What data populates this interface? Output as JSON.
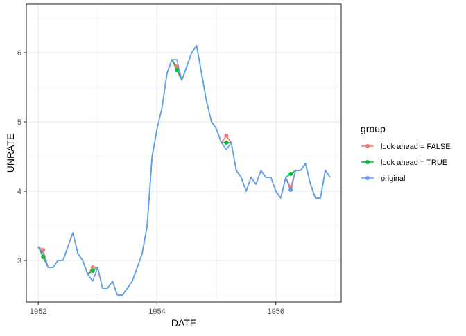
{
  "chart_data": {
    "type": "line",
    "xlabel": "DATE",
    "ylabel": "UNRATE",
    "xlim": [
      1951.8,
      1957.1
    ],
    "ylim": [
      2.4,
      6.7
    ],
    "x_ticks": [
      1952,
      1954,
      1956
    ],
    "x_tick_labels": [
      "1952",
      "1954",
      "1956"
    ],
    "y_ticks": [
      3,
      4,
      5,
      6
    ],
    "y_tick_labels": [
      "3",
      "4",
      "5",
      "6"
    ],
    "grid": true,
    "legend": {
      "title": "group",
      "position": "right",
      "entries": [
        {
          "label": "look ahead = FALSE",
          "color": "#F8766D"
        },
        {
          "label": "look ahead = TRUE",
          "color": "#00BA38"
        },
        {
          "label": "original",
          "color": "#619CFF"
        }
      ]
    },
    "series": [
      {
        "name": "original",
        "color": "#619CFF",
        "x": [
          1952.0,
          1952.083,
          1952.167,
          1952.25,
          1952.333,
          1952.417,
          1952.5,
          1952.583,
          1952.667,
          1952.75,
          1952.833,
          1952.917,
          1953.0,
          1953.083,
          1953.167,
          1953.25,
          1953.333,
          1953.417,
          1953.5,
          1953.583,
          1953.667,
          1953.75,
          1953.833,
          1953.917,
          1954.0,
          1954.083,
          1954.167,
          1954.25,
          1954.333,
          1954.417,
          1954.5,
          1954.583,
          1954.667,
          1954.75,
          1954.833,
          1954.917,
          1955.0,
          1955.083,
          1955.167,
          1955.25,
          1955.333,
          1955.417,
          1955.5,
          1955.583,
          1955.667,
          1955.75,
          1955.833,
          1955.917,
          1956.0,
          1956.083,
          1956.167,
          1956.25,
          1956.333,
          1956.417,
          1956.5,
          1956.583,
          1956.667,
          1956.75,
          1956.833,
          1956.917
        ],
        "values": [
          3.2,
          3.1,
          2.9,
          2.9,
          3.0,
          3.0,
          3.2,
          3.4,
          3.1,
          3.0,
          2.8,
          2.7,
          2.9,
          2.6,
          2.6,
          2.7,
          2.5,
          2.5,
          2.6,
          2.7,
          2.9,
          3.1,
          3.5,
          4.5,
          4.9,
          5.2,
          5.7,
          5.9,
          5.9,
          5.6,
          5.8,
          6.0,
          6.1,
          5.7,
          5.3,
          5.0,
          4.9,
          4.7,
          4.6,
          4.7,
          4.3,
          4.2,
          4.0,
          4.2,
          4.1,
          4.3,
          4.2,
          4.2,
          4.0,
          3.9,
          4.2,
          4.0,
          4.3,
          4.3,
          4.4,
          4.1,
          3.9,
          3.9,
          4.3,
          4.2
        ]
      },
      {
        "name": "look ahead = FALSE",
        "color": "#F8766D",
        "x": [
          1952.0,
          1952.083,
          1952.167,
          1952.25,
          1952.333,
          1952.417,
          1952.5,
          1952.583,
          1952.667,
          1952.75,
          1952.833,
          1952.917,
          1953.0,
          1953.083,
          1953.167,
          1953.25,
          1953.333,
          1953.417,
          1953.5,
          1953.583,
          1953.667,
          1953.75,
          1953.833,
          1953.917,
          1954.0,
          1954.083,
          1954.167,
          1954.25,
          1954.333,
          1954.417,
          1954.5,
          1954.583,
          1954.667,
          1954.75,
          1954.833,
          1954.917,
          1955.0,
          1955.083,
          1955.167,
          1955.25,
          1955.333,
          1955.417,
          1955.5,
          1955.583,
          1955.667,
          1955.75,
          1955.833,
          1955.917,
          1956.0,
          1956.083,
          1956.167,
          1956.25,
          1956.333,
          1956.417,
          1956.5,
          1956.583,
          1956.667,
          1956.75,
          1956.833,
          1956.917
        ],
        "values": [
          3.2,
          3.15,
          2.9,
          2.9,
          3.0,
          3.0,
          3.2,
          3.4,
          3.1,
          3.0,
          2.8,
          2.9,
          2.9,
          2.6,
          2.6,
          2.7,
          2.5,
          2.5,
          2.6,
          2.7,
          2.9,
          3.1,
          3.5,
          4.5,
          4.9,
          5.2,
          5.7,
          5.9,
          5.8,
          5.6,
          5.8,
          6.0,
          6.1,
          5.7,
          5.3,
          5.0,
          4.9,
          4.7,
          4.8,
          4.7,
          4.3,
          4.2,
          4.0,
          4.2,
          4.1,
          4.3,
          4.2,
          4.2,
          4.0,
          3.9,
          4.2,
          4.05,
          4.3,
          4.3,
          4.4,
          4.1,
          3.9,
          3.9,
          4.3,
          4.2
        ],
        "points": [
          {
            "x": 1952.083,
            "y": 3.15
          },
          {
            "x": 1952.917,
            "y": 2.9
          },
          {
            "x": 1954.333,
            "y": 5.8
          },
          {
            "x": 1955.167,
            "y": 4.8
          },
          {
            "x": 1956.25,
            "y": 4.05
          }
        ]
      },
      {
        "name": "look ahead = TRUE",
        "color": "#00BA38",
        "x": [
          1952.0,
          1952.083,
          1952.167,
          1952.25,
          1952.333,
          1952.417,
          1952.5,
          1952.583,
          1952.667,
          1952.75,
          1952.833,
          1952.917,
          1953.0,
          1953.083,
          1953.167,
          1953.25,
          1953.333,
          1953.417,
          1953.5,
          1953.583,
          1953.667,
          1953.75,
          1953.833,
          1953.917,
          1954.0,
          1954.083,
          1954.167,
          1954.25,
          1954.333,
          1954.417,
          1954.5,
          1954.583,
          1954.667,
          1954.75,
          1954.833,
          1954.917,
          1955.0,
          1955.083,
          1955.167,
          1955.25,
          1955.333,
          1955.417,
          1955.5,
          1955.583,
          1955.667,
          1955.75,
          1955.833,
          1955.917,
          1956.0,
          1956.083,
          1956.167,
          1956.25,
          1956.333,
          1956.417,
          1956.5,
          1956.583,
          1956.667,
          1956.75,
          1956.833,
          1956.917
        ],
        "values": [
          3.2,
          3.05,
          2.9,
          2.9,
          3.0,
          3.0,
          3.2,
          3.4,
          3.1,
          3.0,
          2.8,
          2.85,
          2.9,
          2.6,
          2.6,
          2.7,
          2.5,
          2.5,
          2.6,
          2.7,
          2.9,
          3.1,
          3.5,
          4.5,
          4.9,
          5.2,
          5.7,
          5.9,
          5.75,
          5.6,
          5.8,
          6.0,
          6.1,
          5.7,
          5.3,
          5.0,
          4.9,
          4.7,
          4.7,
          4.7,
          4.3,
          4.2,
          4.0,
          4.2,
          4.1,
          4.3,
          4.2,
          4.2,
          4.0,
          3.9,
          4.2,
          4.25,
          4.3,
          4.3,
          4.4,
          4.1,
          3.9,
          3.9,
          4.3,
          4.2
        ],
        "points": [
          {
            "x": 1952.083,
            "y": 3.05
          },
          {
            "x": 1952.917,
            "y": 2.85
          },
          {
            "x": 1954.333,
            "y": 5.75
          },
          {
            "x": 1955.167,
            "y": 4.7
          },
          {
            "x": 1956.25,
            "y": 4.25
          }
        ]
      }
    ],
    "original_points": [
      {
        "x": 1956.25,
        "y": 4.02
      }
    ]
  }
}
